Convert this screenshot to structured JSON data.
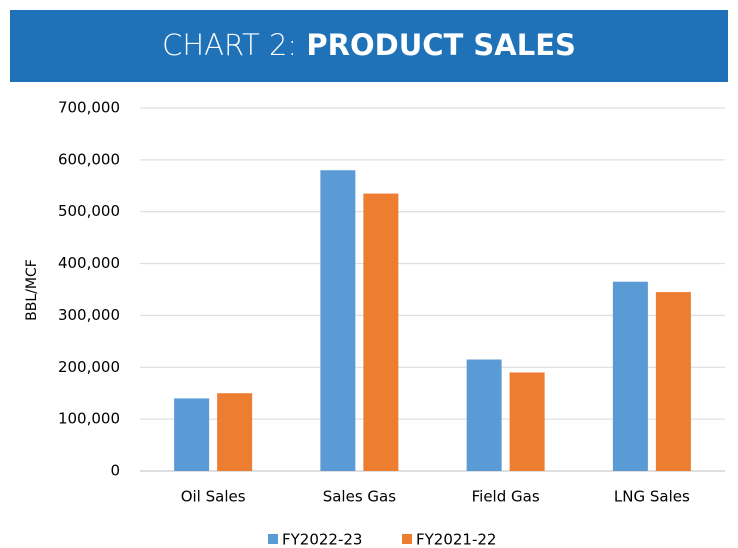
{
  "chart_data": {
    "type": "bar",
    "title_label": "CHART 2:",
    "title": "PRODUCT SALES",
    "y_label": "BBL/MCF",
    "categories": [
      "Oil Sales",
      "Sales Gas",
      "Field Gas",
      "LNG Sales"
    ],
    "series": [
      {
        "name": "FY2022-23",
        "color": "#5b9bd5",
        "values": [
          140000,
          580000,
          215000,
          365000
        ]
      },
      {
        "name": "FY2021-22",
        "color": "#ed7d31",
        "values": [
          150000,
          535000,
          190000,
          345000
        ]
      }
    ],
    "ylim": [
      0,
      700000
    ],
    "yticks": [
      0,
      {
        "value": 100000,
        "label": "100,000"
      },
      {
        "value": 200000,
        "label": "200,000"
      },
      {
        "value": 300000,
        "label": "300,000"
      },
      {
        "value": 400000,
        "label": "400,000"
      },
      {
        "value": 500000,
        "label": "500,000"
      },
      {
        "value": 600000,
        "label": "600,000"
      },
      {
        "value": 700000,
        "label": "700,000"
      }
    ],
    "grid": true,
    "legend": "bottom",
    "banner_color": "#1f72b8"
  }
}
